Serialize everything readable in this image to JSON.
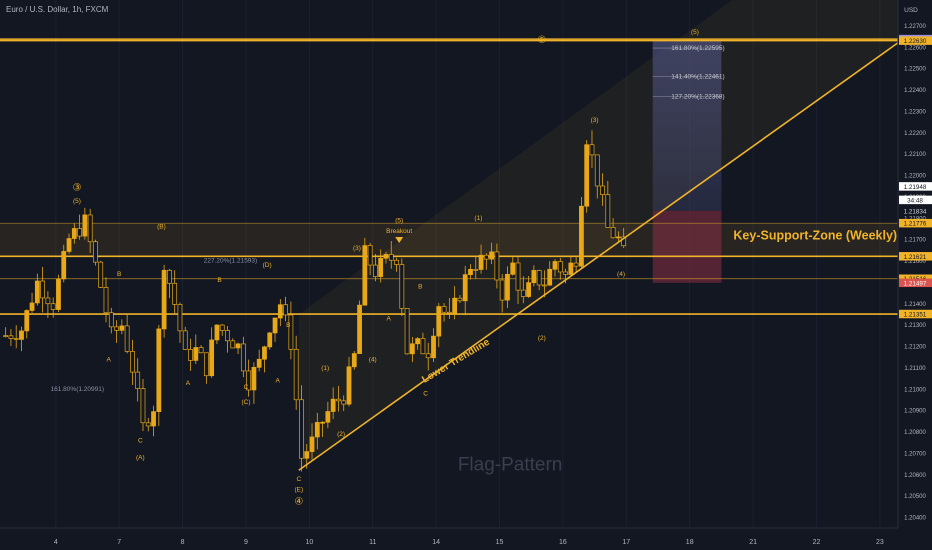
{
  "header": {
    "symbol": "Euro / U.S. Dollar, 1h, FXCM"
  },
  "colors": {
    "bg": "#131722",
    "accent": "#f0b32a",
    "candle": "#e8a817",
    "text": "#b2b5be",
    "grid": "#1c2030",
    "zone_upper": "#5b5f95",
    "zone_lower": "#8b2f45",
    "purple_tag": "#9c8ee0",
    "red_tag": "#d9534f"
  },
  "chart_data": {
    "type": "candlestick",
    "currency": "USD",
    "ylim": [
      1.2035,
      1.2282
    ],
    "yticks": [
      "1.22700",
      "1.22600",
      "1.22500",
      "1.22400",
      "1.22300",
      "1.22200",
      "1.22100",
      "1.22000",
      "1.21900",
      "1.21800",
      "1.21700",
      "1.21600",
      "1.21500",
      "1.21400",
      "1.21300",
      "1.21200",
      "1.21100",
      "1.21000",
      "1.20900",
      "1.20800",
      "1.20700",
      "1.20600",
      "1.20500",
      "1.20400"
    ],
    "xticks": [
      {
        "label": "4",
        "i": 10
      },
      {
        "label": "7",
        "i": 22
      },
      {
        "label": "8",
        "i": 34
      },
      {
        "label": "9",
        "i": 46
      },
      {
        "label": "10",
        "i": 58
      },
      {
        "label": "11",
        "i": 70
      },
      {
        "label": "14",
        "i": 82
      },
      {
        "label": "15",
        "i": 94
      },
      {
        "label": "16",
        "i": 106
      },
      {
        "label": "17",
        "i": 118
      },
      {
        "label": "18",
        "i": 130
      },
      {
        "label": "21",
        "i": 142
      },
      {
        "label": "22",
        "i": 154
      },
      {
        "label": "23",
        "i": 166
      }
    ],
    "n_bars": 170,
    "last_candle_index": 117,
    "waypoints": [
      [
        0,
        1.2125
      ],
      [
        3,
        1.2128
      ],
      [
        6,
        1.215
      ],
      [
        9,
        1.214
      ],
      [
        12,
        1.217
      ],
      [
        15,
        1.2178
      ],
      [
        18,
        1.2148
      ],
      [
        20,
        1.2125
      ],
      [
        22,
        1.213
      ],
      [
        24,
        1.211
      ],
      [
        26,
        1.2082
      ],
      [
        28,
        1.2092
      ],
      [
        30,
        1.216
      ],
      [
        32,
        1.214
      ],
      [
        34,
        1.2115
      ],
      [
        36,
        1.2118
      ],
      [
        38,
        1.211
      ],
      [
        40,
        1.213
      ],
      [
        42,
        1.2125
      ],
      [
        44,
        1.212
      ],
      [
        46,
        1.2104
      ],
      [
        48,
        1.2112
      ],
      [
        50,
        1.213
      ],
      [
        52,
        1.214
      ],
      [
        54,
        1.2122
      ],
      [
        56,
        1.2068
      ],
      [
        58,
        1.2075
      ],
      [
        60,
        1.2085
      ],
      [
        62,
        1.2093
      ],
      [
        64,
        1.2097
      ],
      [
        66,
        1.2115
      ],
      [
        68,
        1.2163
      ],
      [
        70,
        1.2155
      ],
      [
        72,
        1.216
      ],
      [
        74,
        1.2162
      ],
      [
        76,
        1.2118
      ],
      [
        78,
        1.212
      ],
      [
        80,
        1.2118
      ],
      [
        82,
        1.214
      ],
      [
        84,
        1.2132
      ],
      [
        86,
        1.2145
      ],
      [
        88,
        1.2158
      ],
      [
        90,
        1.216
      ],
      [
        92,
        1.216
      ],
      [
        94,
        1.2145
      ],
      [
        96,
        1.2158
      ],
      [
        98,
        1.2141
      ],
      [
        100,
        1.2152
      ],
      [
        102,
        1.215
      ],
      [
        104,
        1.216
      ],
      [
        106,
        1.2153
      ],
      [
        108,
        1.2162
      ],
      [
        110,
        1.2218
      ],
      [
        112,
        1.2198
      ],
      [
        114,
        1.2175
      ],
      [
        116,
        1.217
      ],
      [
        117,
        1.2163
      ]
    ],
    "levels": [
      {
        "price": 1.22637,
        "tag": "1.22637",
        "tag_color": "#9c8ee0",
        "line": "solid"
      },
      {
        "price": 1.2263,
        "tag": "1.22630",
        "tag_color": "#f0b32a",
        "line": "solid"
      },
      {
        "price": 1.21776,
        "tag": "1.21776",
        "tag_color": "#f0b32a",
        "line": "thin"
      },
      {
        "price": 1.21621,
        "tag": "1.21621",
        "tag_color": "#f0b32a",
        "line": "solid"
      },
      {
        "price": 1.21516,
        "tag": "1.21516",
        "tag_color": "#f0b32a",
        "line": "thin"
      },
      {
        "price": 1.21351,
        "tag": "1.21351",
        "tag_color": "#f0b32a",
        "line": "solid"
      }
    ],
    "price_tags": [
      {
        "price": 1.21948,
        "label": "1.21948",
        "style": "white"
      },
      {
        "price": 1.21885,
        "label": "34:48",
        "style": "white"
      },
      {
        "price": 1.21834,
        "label": "1.21834",
        "style": "plain"
      },
      {
        "price": 1.21497,
        "label": "1.21497",
        "style": "red"
      }
    ],
    "trendline": {
      "from": [
        56,
        1.2062
      ],
      "to": [
        170,
        1.2263
      ]
    },
    "fib_levels": [
      {
        "price": 1.22595,
        "label": "161.80%(1.22595)"
      },
      {
        "price": 1.22461,
        "label": "141.40%(1.22461)"
      },
      {
        "price": 1.22368,
        "label": "127.20%(1.22368)"
      }
    ],
    "extra_fib_labels": [
      {
        "i": 38,
        "price": 1.21593,
        "label": "227.20%(1.21593)"
      },
      {
        "i": 9,
        "price": 1.20991,
        "label": "161.80%(1.20991)"
      }
    ],
    "position": {
      "i_from": 123,
      "i_to": 136,
      "top": 1.2263,
      "mid": 1.21834,
      "bottom": 1.21497
    },
    "wave_labels": [
      {
        "i": 14,
        "price": 1.2193,
        "text": "③",
        "circled": true
      },
      {
        "i": 14,
        "price": 1.2187,
        "text": "(5)"
      },
      {
        "i": 30,
        "price": 1.2175,
        "text": "(B)"
      },
      {
        "i": 22,
        "price": 1.2153,
        "text": "B"
      },
      {
        "i": 20,
        "price": 1.2113,
        "text": "A"
      },
      {
        "i": 26,
        "price": 1.2075,
        "text": "C"
      },
      {
        "i": 26,
        "price": 1.2067,
        "text": "(A)"
      },
      {
        "i": 35,
        "price": 1.2102,
        "text": "A"
      },
      {
        "i": 41,
        "price": 1.215,
        "text": "B"
      },
      {
        "i": 46,
        "price": 1.21,
        "text": "C"
      },
      {
        "i": 46,
        "price": 1.2093,
        "text": "(C)"
      },
      {
        "i": 50,
        "price": 1.2157,
        "text": "(D)"
      },
      {
        "i": 54,
        "price": 1.2129,
        "text": "B"
      },
      {
        "i": 52,
        "price": 1.2103,
        "text": "A"
      },
      {
        "i": 56,
        "price": 1.2057,
        "text": "C"
      },
      {
        "i": 56,
        "price": 1.2052,
        "text": "(E)"
      },
      {
        "i": 56,
        "price": 1.2046,
        "text": "④",
        "circled": true
      },
      {
        "i": 61,
        "price": 1.2109,
        "text": "(1)"
      },
      {
        "i": 64,
        "price": 1.2078,
        "text": "(2)"
      },
      {
        "i": 67,
        "price": 1.2165,
        "text": "(3)"
      },
      {
        "i": 70,
        "price": 1.2113,
        "text": "(4)"
      },
      {
        "i": 75,
        "price": 1.2178,
        "text": "(5)"
      },
      {
        "i": 73,
        "price": 1.2132,
        "text": "A"
      },
      {
        "i": 79,
        "price": 1.2147,
        "text": "B"
      },
      {
        "i": 80,
        "price": 1.2097,
        "text": "C"
      },
      {
        "i": 90,
        "price": 1.2179,
        "text": "(1)"
      },
      {
        "i": 102,
        "price": 1.2123,
        "text": "(2)"
      },
      {
        "i": 112,
        "price": 1.2225,
        "text": "(3)"
      },
      {
        "i": 117,
        "price": 1.2153,
        "text": "(4)"
      },
      {
        "i": 102,
        "price": 1.2262,
        "text": "⑤",
        "circled": true
      },
      {
        "i": 131,
        "price": 1.2266,
        "text": "(5)"
      }
    ],
    "annotations": [
      {
        "text": "Breakout",
        "i": 75,
        "price": 1.2173
      },
      {
        "text": "Lower Trendline",
        "i": 86,
        "price": 1.2112,
        "rotate": -31
      },
      {
        "text": "Key-Support-Zone (Weekly)",
        "i": 136,
        "price": 1.217
      },
      {
        "text": "Flag-Pattern",
        "i": 96,
        "price": 1.2062
      }
    ]
  }
}
